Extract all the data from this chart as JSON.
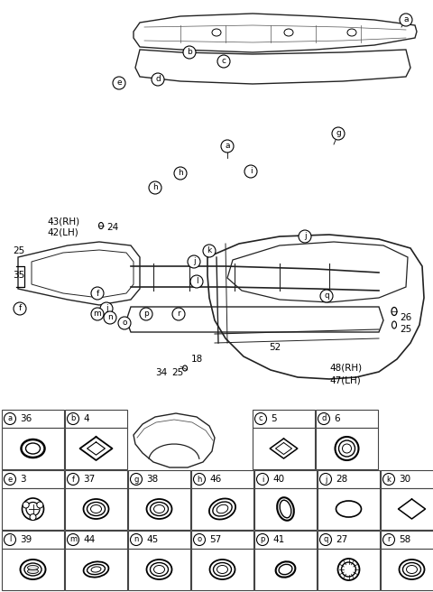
{
  "bg_color": "#ffffff",
  "table_row0": [
    {
      "label": "a",
      "num": "36",
      "shape": "ring_circle",
      "col": 0
    },
    {
      "label": "b",
      "num": "4",
      "shape": "ring_diamond",
      "col": 1
    },
    {
      "label": "c",
      "num": "5",
      "shape": "ring_diamond_sm",
      "col": 4
    },
    {
      "label": "d",
      "num": "6",
      "shape": "ring_circle_grommet",
      "col": 5
    }
  ],
  "table_row1": [
    {
      "label": "e",
      "num": "3",
      "shape": "grommet_screws"
    },
    {
      "label": "f",
      "num": "37",
      "shape": "ring_oval_3"
    },
    {
      "label": "g",
      "num": "38",
      "shape": "ring_oval_3"
    },
    {
      "label": "h",
      "num": "46",
      "shape": "ring_oval_tilted_3"
    },
    {
      "label": "i",
      "num": "40",
      "shape": "ring_oval_thin"
    },
    {
      "label": "j",
      "num": "28",
      "shape": "oval_plain"
    },
    {
      "label": "k",
      "num": "30",
      "shape": "diamond_plain"
    }
  ],
  "table_row2": [
    {
      "label": "l",
      "num": "39",
      "shape": "ring_grommet_flat"
    },
    {
      "label": "m",
      "num": "44",
      "shape": "ring_oval_flat"
    },
    {
      "label": "n",
      "num": "45",
      "shape": "ring_oval_3"
    },
    {
      "label": "o",
      "num": "57",
      "shape": "ring_oval_3"
    },
    {
      "label": "p",
      "num": "41",
      "shape": "ring_oval_thin2"
    },
    {
      "label": "q",
      "num": "27",
      "shape": "ring_circle_ribbed"
    },
    {
      "label": "r",
      "num": "58",
      "shape": "ring_oval_3"
    }
  ]
}
